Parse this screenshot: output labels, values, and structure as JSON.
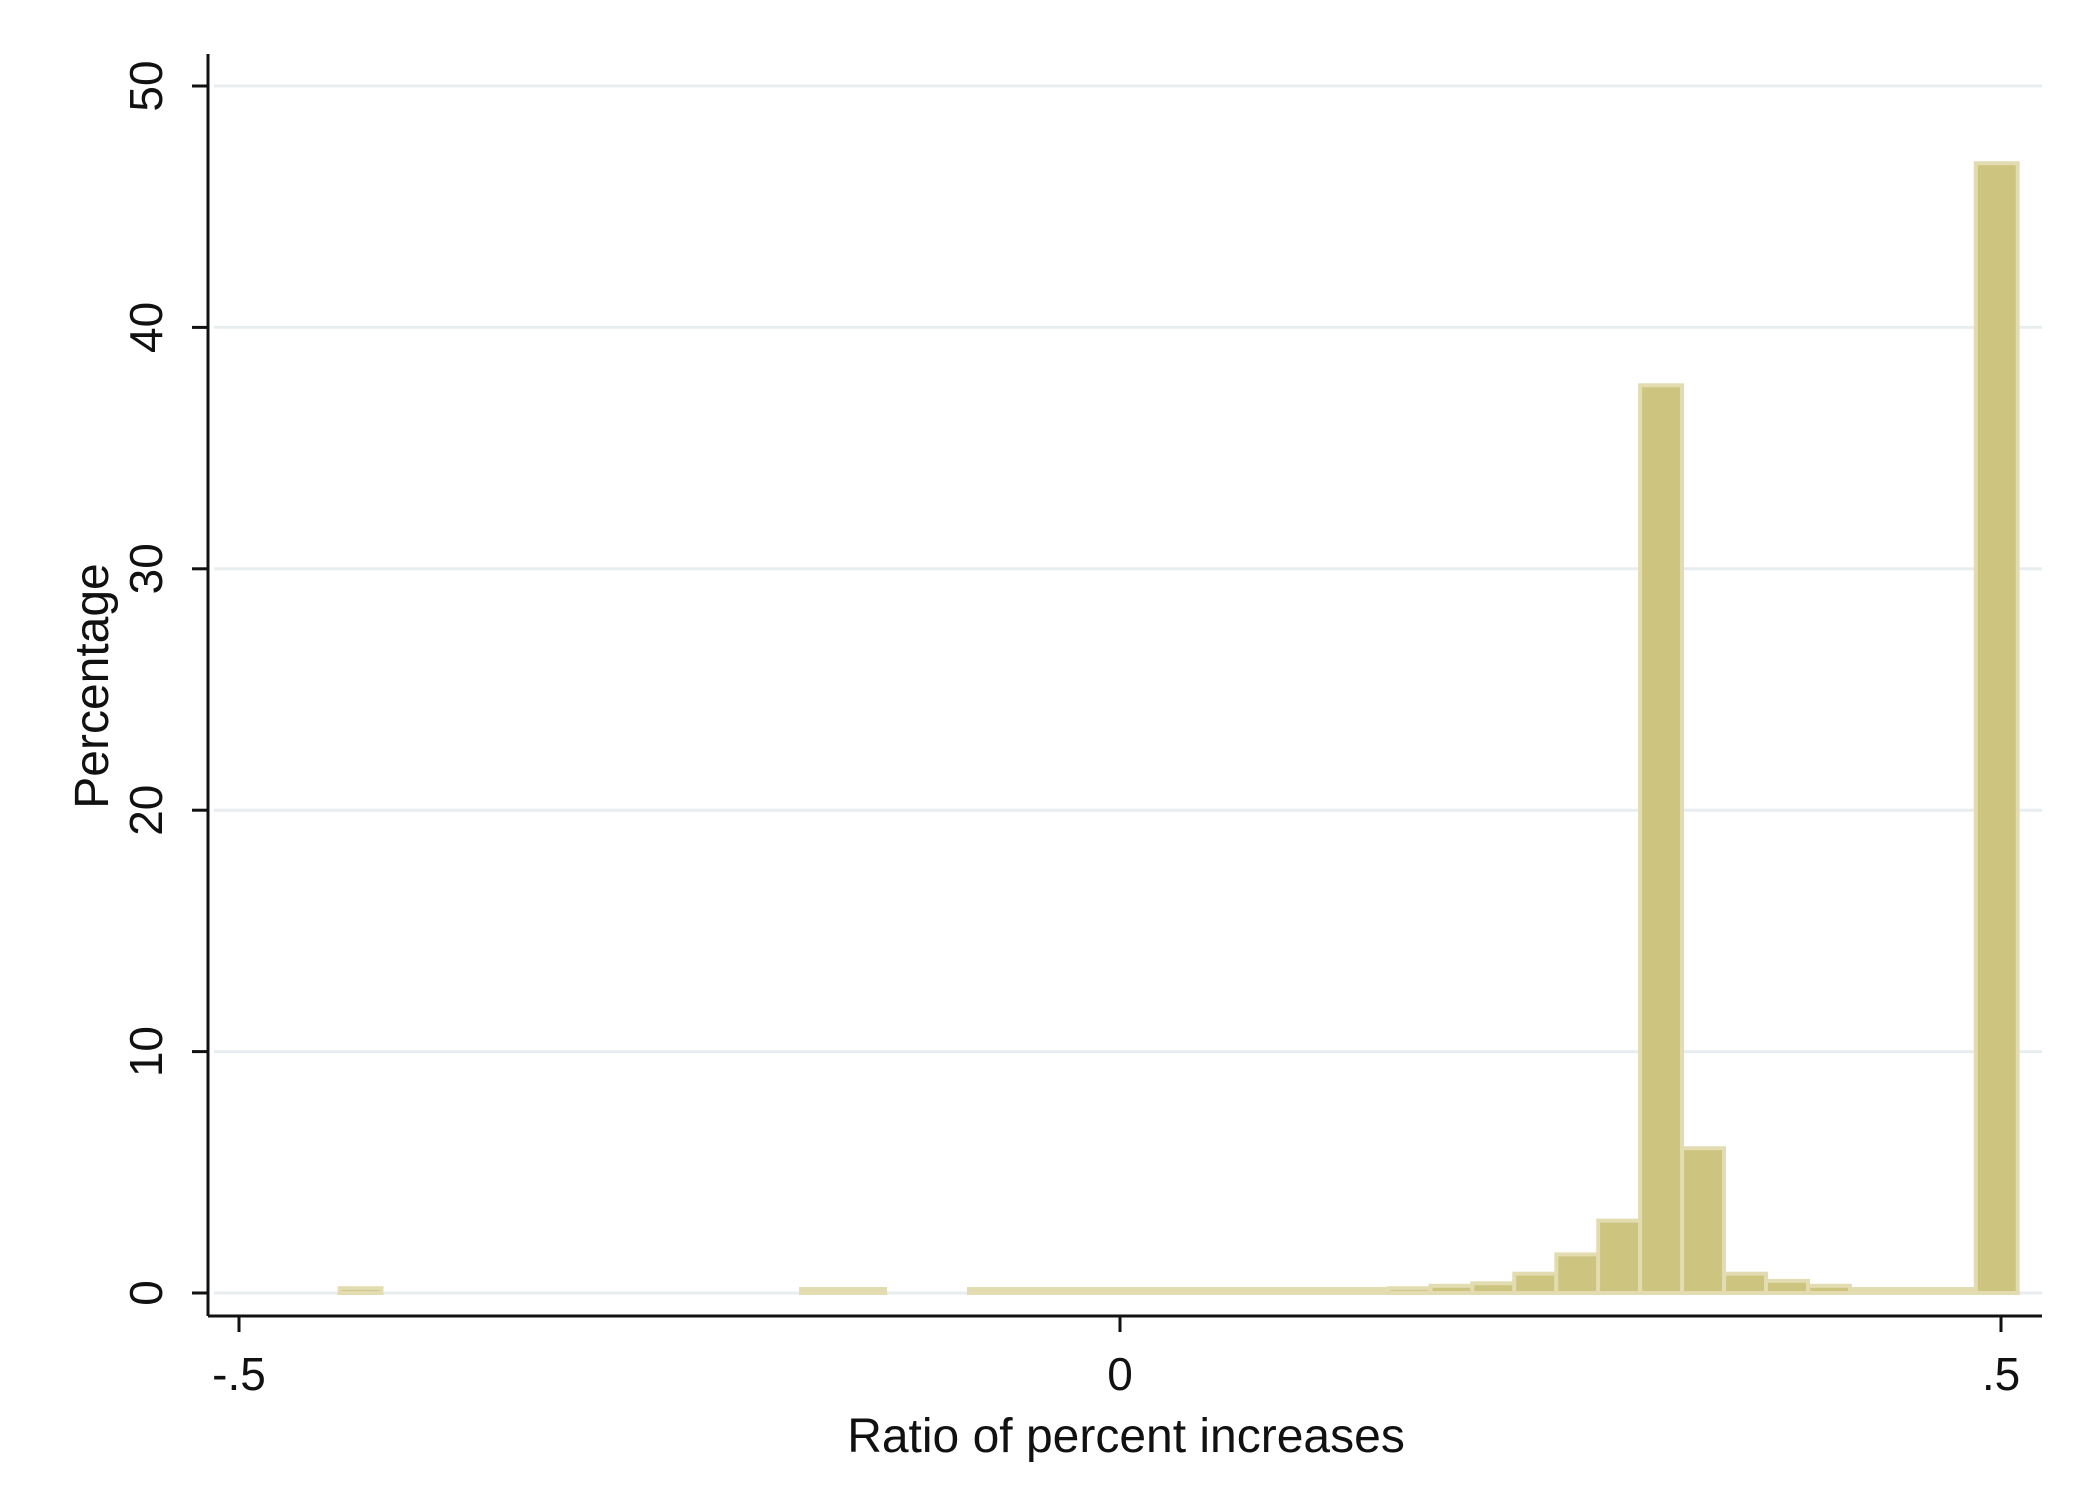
{
  "chart_data": {
    "type": "bar",
    "title": "",
    "xlabel": "Ratio of percent increases",
    "ylabel": "Percentage",
    "xlim": [
      -0.52,
      0.52
    ],
    "ylim": [
      0,
      51
    ],
    "xticks": [
      -0.5,
      0,
      0.5
    ],
    "xtick_labels": [
      "-.5",
      "0",
      ".5"
    ],
    "yticks": [
      0,
      10,
      20,
      30,
      40,
      50
    ],
    "ytick_labels": [
      "0",
      "10",
      "20",
      "30",
      "40",
      "50"
    ],
    "grid": true,
    "bar_color": "#ccc47f",
    "bar_outline_color": "#e2dcb0",
    "bin_width": 0.0238,
    "bins": [
      {
        "x0": -0.4429,
        "value": 0.2
      },
      {
        "x0": -0.181,
        "value": 0.1
      },
      {
        "x0": -0.1571,
        "value": 0.1
      },
      {
        "x0": -0.0857,
        "value": 0.1
      },
      {
        "x0": -0.0619,
        "value": 0.1
      },
      {
        "x0": -0.0381,
        "value": 0.1
      },
      {
        "x0": -0.0143,
        "value": 0.1
      },
      {
        "x0": 0.0095,
        "value": 0.1
      },
      {
        "x0": 0.0333,
        "value": 0.1
      },
      {
        "x0": 0.0571,
        "value": 0.1
      },
      {
        "x0": 0.081,
        "value": 0.1
      },
      {
        "x0": 0.1048,
        "value": 0.1
      },
      {
        "x0": 0.1286,
        "value": 0.15
      },
      {
        "x0": 0.1524,
        "value": 0.2
      },
      {
        "x0": 0.1762,
        "value": 0.3
      },
      {
        "x0": 0.2,
        "value": 0.4
      },
      {
        "x0": 0.2238,
        "value": 0.8
      },
      {
        "x0": 0.2476,
        "value": 1.6
      },
      {
        "x0": 0.2714,
        "value": 3.0
      },
      {
        "x0": 0.2952,
        "value": 37.6
      },
      {
        "x0": 0.319,
        "value": 6.0
      },
      {
        "x0": 0.3429,
        "value": 0.8
      },
      {
        "x0": 0.3667,
        "value": 0.5
      },
      {
        "x0": 0.3905,
        "value": 0.3
      },
      {
        "x0": 0.4143,
        "value": 0.15
      },
      {
        "x0": 0.4381,
        "value": 0.1
      },
      {
        "x0": 0.4619,
        "value": 0.1
      },
      {
        "x0": 0.4857,
        "value": 46.8
      }
    ]
  }
}
